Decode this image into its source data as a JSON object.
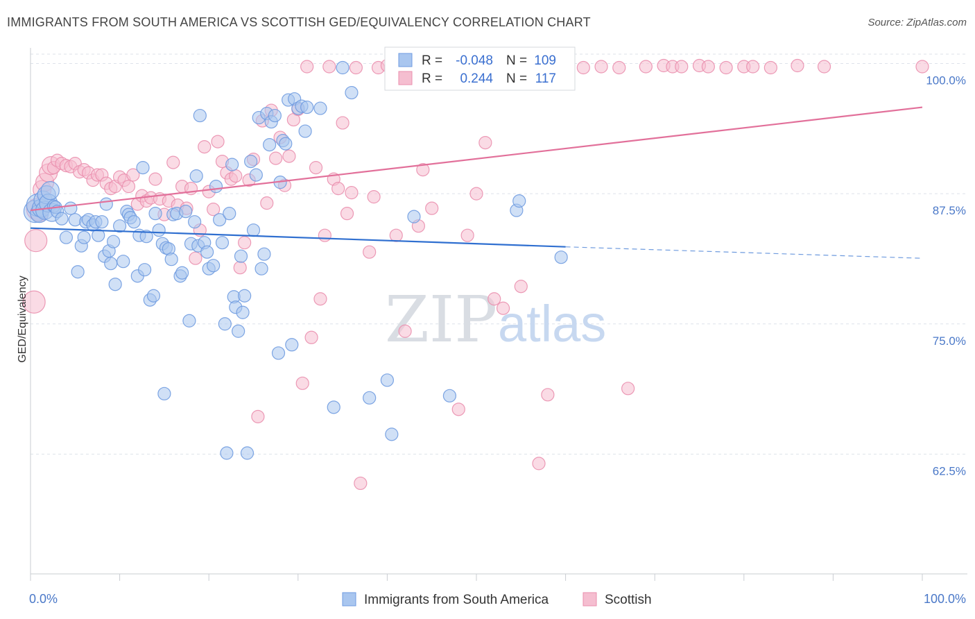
{
  "title": "IMMIGRANTS FROM SOUTH AMERICA VS SCOTTISH GED/EQUIVALENCY CORRELATION CHART",
  "source": "Source: ZipAtlas.com",
  "watermark": {
    "zip": "ZIP",
    "atlas": "atlas"
  },
  "colors": {
    "blue_fill": "#a9c6ef",
    "blue_stroke": "#6f9be0",
    "blue_line": "#2f6fd0",
    "pink_fill": "#f5bed0",
    "pink_stroke": "#ea8fae",
    "pink_line": "#e2709a",
    "grid": "#dde2ea",
    "tick_text": "#4a78c8"
  },
  "chart_data": {
    "type": "scatter",
    "xlabel": "",
    "ylabel": "GED/Equivalency",
    "xlim": [
      0,
      100
    ],
    "ylim": [
      51,
      101.5
    ],
    "x_tick_labels": [
      {
        "value": 0,
        "label": "0.0%"
      },
      {
        "value": 100,
        "label": "100.0%"
      }
    ],
    "y_ticks": [
      {
        "value": 62.5,
        "label": "62.5%"
      },
      {
        "value": 75.0,
        "label": "75.0%"
      },
      {
        "value": 87.5,
        "label": "87.5%"
      },
      {
        "value": 100.0,
        "label": "100.0%"
      }
    ],
    "grid": true,
    "legend_position": "bottom-center",
    "stats": [
      {
        "series": "Immigrants from South America",
        "r_label": "R =",
        "r": "-0.048",
        "n_label": "N =",
        "n": "109"
      },
      {
        "series": "Scottish",
        "r_label": "R =",
        "r": "0.244",
        "n_label": "N =",
        "n": "117"
      }
    ],
    "series": [
      {
        "name": "Immigrants from South America",
        "color": "#a9c6ef",
        "trend": {
          "x0": 0,
          "y0": 84.2,
          "x1": 60,
          "y1": 82.4,
          "dash_x1": 100,
          "dash_y1": 81.3
        },
        "points": [
          [
            0.5,
            85.8
          ],
          [
            0.8,
            86.4
          ],
          [
            1.0,
            85.6
          ],
          [
            1.2,
            86.1
          ],
          [
            1.4,
            86.9
          ],
          [
            1.6,
            85.9
          ],
          [
            1.8,
            87.4
          ],
          [
            2.0,
            86.6
          ],
          [
            2.2,
            87.8
          ],
          [
            2.4,
            85.7
          ],
          [
            2.6,
            86.3
          ],
          [
            2.8,
            86.2
          ],
          [
            3.0,
            85.8
          ],
          [
            3.5,
            85.1
          ],
          [
            4.0,
            83.3
          ],
          [
            4.5,
            86.1
          ],
          [
            5.0,
            85.0
          ],
          [
            5.3,
            80.0
          ],
          [
            5.7,
            82.5
          ],
          [
            6.0,
            83.3
          ],
          [
            6.2,
            84.8
          ],
          [
            6.5,
            85.0
          ],
          [
            7.0,
            84.5
          ],
          [
            7.3,
            84.8
          ],
          [
            7.6,
            83.5
          ],
          [
            8.0,
            84.8
          ],
          [
            8.3,
            81.5
          ],
          [
            8.5,
            86.5
          ],
          [
            8.8,
            82.0
          ],
          [
            9.0,
            80.8
          ],
          [
            9.3,
            82.9
          ],
          [
            9.5,
            78.8
          ],
          [
            10.0,
            84.4
          ],
          [
            10.4,
            81.0
          ],
          [
            10.8,
            85.8
          ],
          [
            11.0,
            85.5
          ],
          [
            11.2,
            85.2
          ],
          [
            11.6,
            84.8
          ],
          [
            12.0,
            79.6
          ],
          [
            12.2,
            83.5
          ],
          [
            12.6,
            90.0
          ],
          [
            12.8,
            80.2
          ],
          [
            13.0,
            83.4
          ],
          [
            13.4,
            77.3
          ],
          [
            13.8,
            77.7
          ],
          [
            14.0,
            85.6
          ],
          [
            14.4,
            84.0
          ],
          [
            14.8,
            82.7
          ],
          [
            15.0,
            68.3
          ],
          [
            15.2,
            82.3
          ],
          [
            15.5,
            82.2
          ],
          [
            15.8,
            81.2
          ],
          [
            16.0,
            85.5
          ],
          [
            16.4,
            85.6
          ],
          [
            16.8,
            79.6
          ],
          [
            17.0,
            79.9
          ],
          [
            17.4,
            85.8
          ],
          [
            17.8,
            75.3
          ],
          [
            18.0,
            82.7
          ],
          [
            18.4,
            84.8
          ],
          [
            18.6,
            89.2
          ],
          [
            18.8,
            82.5
          ],
          [
            19.0,
            95.0
          ],
          [
            19.5,
            82.8
          ],
          [
            19.8,
            81.9
          ],
          [
            20.0,
            80.3
          ],
          [
            20.5,
            80.6
          ],
          [
            20.8,
            88.2
          ],
          [
            21.2,
            85.0
          ],
          [
            21.5,
            82.8
          ],
          [
            21.8,
            75.0
          ],
          [
            22.0,
            62.6
          ],
          [
            22.3,
            85.6
          ],
          [
            22.6,
            90.3
          ],
          [
            22.8,
            77.6
          ],
          [
            23.0,
            76.6
          ],
          [
            23.3,
            74.3
          ],
          [
            23.6,
            81.5
          ],
          [
            23.8,
            76.1
          ],
          [
            24.0,
            77.7
          ],
          [
            24.3,
            62.6
          ],
          [
            24.7,
            90.6
          ],
          [
            25.0,
            84.0
          ],
          [
            25.3,
            89.3
          ],
          [
            25.6,
            94.8
          ],
          [
            25.9,
            80.3
          ],
          [
            26.2,
            81.7
          ],
          [
            26.5,
            95.2
          ],
          [
            26.8,
            92.2
          ],
          [
            27.0,
            94.4
          ],
          [
            27.4,
            95.0
          ],
          [
            27.8,
            72.2
          ],
          [
            28.0,
            88.6
          ],
          [
            28.3,
            92.6
          ],
          [
            28.6,
            92.3
          ],
          [
            28.9,
            96.5
          ],
          [
            29.3,
            73.0
          ],
          [
            29.6,
            96.6
          ],
          [
            30.0,
            95.7
          ],
          [
            30.4,
            95.9
          ],
          [
            30.8,
            93.5
          ],
          [
            31.0,
            95.8
          ],
          [
            32.5,
            95.7
          ],
          [
            34.0,
            67.0
          ],
          [
            35.0,
            99.6
          ],
          [
            36.0,
            97.2
          ],
          [
            38.0,
            67.9
          ],
          [
            40.0,
            69.6
          ],
          [
            40.5,
            64.4
          ],
          [
            43.0,
            85.3
          ],
          [
            47.0,
            68.1
          ],
          [
            54.5,
            85.9
          ],
          [
            54.8,
            86.8
          ],
          [
            59.5,
            81.4
          ]
        ]
      },
      {
        "name": "Scottish",
        "color": "#f5bed0",
        "trend": {
          "x0": 0,
          "y0": 85.9,
          "x1": 100,
          "y1": 95.8
        },
        "points": [
          [
            0.4,
            77.1
          ],
          [
            0.6,
            83.0
          ],
          [
            0.8,
            86.0
          ],
          [
            1.0,
            85.7
          ],
          [
            1.3,
            87.9
          ],
          [
            1.6,
            88.6
          ],
          [
            2.0,
            89.5
          ],
          [
            2.3,
            90.2
          ],
          [
            2.6,
            90.0
          ],
          [
            3.0,
            90.7
          ],
          [
            3.5,
            90.4
          ],
          [
            4.0,
            90.2
          ],
          [
            4.5,
            90.1
          ],
          [
            5.0,
            90.4
          ],
          [
            5.5,
            89.6
          ],
          [
            6.0,
            89.8
          ],
          [
            6.5,
            89.5
          ],
          [
            7.0,
            88.8
          ],
          [
            7.5,
            89.3
          ],
          [
            8.0,
            89.3
          ],
          [
            8.5,
            88.5
          ],
          [
            9.0,
            88.0
          ],
          [
            9.5,
            88.2
          ],
          [
            10.0,
            89.1
          ],
          [
            10.5,
            88.8
          ],
          [
            11.0,
            88.2
          ],
          [
            11.5,
            89.3
          ],
          [
            12.0,
            86.5
          ],
          [
            12.5,
            87.3
          ],
          [
            13.0,
            86.8
          ],
          [
            13.5,
            87.1
          ],
          [
            14.0,
            88.9
          ],
          [
            14.5,
            87.0
          ],
          [
            15.0,
            85.5
          ],
          [
            15.5,
            86.8
          ],
          [
            16.0,
            90.5
          ],
          [
            16.5,
            86.4
          ],
          [
            17.0,
            88.2
          ],
          [
            17.5,
            86.1
          ],
          [
            18.0,
            88.0
          ],
          [
            18.5,
            81.3
          ],
          [
            19.0,
            84.0
          ],
          [
            19.5,
            92.0
          ],
          [
            20.0,
            87.7
          ],
          [
            20.5,
            86.0
          ],
          [
            21.0,
            92.5
          ],
          [
            21.5,
            90.6
          ],
          [
            22.0,
            89.5
          ],
          [
            22.5,
            88.9
          ],
          [
            23.0,
            89.2
          ],
          [
            23.5,
            80.4
          ],
          [
            24.0,
            82.8
          ],
          [
            24.5,
            88.8
          ],
          [
            25.0,
            90.8
          ],
          [
            25.5,
            66.1
          ],
          [
            26.0,
            94.5
          ],
          [
            26.5,
            86.6
          ],
          [
            27.0,
            95.5
          ],
          [
            27.5,
            90.9
          ],
          [
            28.0,
            92.9
          ],
          [
            28.5,
            88.3
          ],
          [
            29.0,
            91.1
          ],
          [
            29.5,
            94.6
          ],
          [
            30.0,
            95.6
          ],
          [
            30.5,
            69.3
          ],
          [
            31.0,
            99.7
          ],
          [
            31.5,
            73.7
          ],
          [
            32.0,
            90.0
          ],
          [
            32.5,
            77.4
          ],
          [
            33.0,
            83.5
          ],
          [
            33.5,
            99.7
          ],
          [
            34.0,
            88.9
          ],
          [
            34.5,
            88.0
          ],
          [
            35.0,
            94.3
          ],
          [
            35.5,
            85.6
          ],
          [
            36.0,
            87.6
          ],
          [
            36.5,
            99.6
          ],
          [
            37.0,
            59.7
          ],
          [
            38.0,
            81.9
          ],
          [
            38.5,
            87.2
          ],
          [
            39.0,
            99.6
          ],
          [
            40.0,
            99.8
          ],
          [
            41.0,
            83.5
          ],
          [
            42.0,
            74.3
          ],
          [
            43.5,
            84.4
          ],
          [
            44.0,
            89.8
          ],
          [
            45.0,
            86.1
          ],
          [
            46.0,
            99.8
          ],
          [
            47.0,
            99.7
          ],
          [
            48.0,
            66.8
          ],
          [
            49.0,
            83.5
          ],
          [
            50.0,
            87.5
          ],
          [
            51.0,
            92.4
          ],
          [
            52.0,
            77.4
          ],
          [
            53.0,
            76.5
          ],
          [
            54.0,
            99.7
          ],
          [
            55.0,
            78.6
          ],
          [
            56.0,
            99.7
          ],
          [
            57.0,
            61.6
          ],
          [
            58.0,
            68.2
          ],
          [
            59.0,
            99.8
          ],
          [
            60.0,
            99.7
          ],
          [
            62.0,
            99.6
          ],
          [
            64.0,
            99.7
          ],
          [
            66.0,
            99.6
          ],
          [
            67.0,
            68.8
          ],
          [
            69.0,
            99.7
          ],
          [
            71.0,
            99.8
          ],
          [
            72.0,
            99.7
          ],
          [
            73.0,
            99.7
          ],
          [
            75.0,
            99.8
          ],
          [
            76.0,
            99.7
          ],
          [
            78.0,
            99.6
          ],
          [
            80.0,
            99.7
          ],
          [
            81.0,
            99.7
          ],
          [
            83.0,
            99.6
          ],
          [
            86.0,
            99.8
          ],
          [
            89.0,
            99.7
          ],
          [
            100.0,
            99.7
          ]
        ]
      }
    ]
  }
}
